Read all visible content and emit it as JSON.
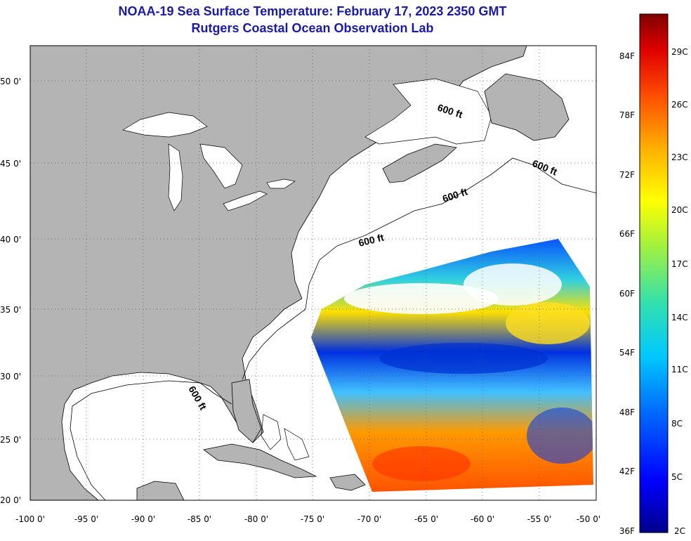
{
  "title": {
    "line1": "NOAA-19 Sea Surface Temperature:  February 17, 2023 2350 GMT",
    "line2": "Rutgers Coastal Ocean Observation Lab"
  },
  "colors": {
    "land": "#b4b4b4",
    "water": "#ffffff",
    "title_text": "#1a1aa8",
    "coastline": "#000000"
  },
  "map": {
    "lon_range": [
      -100,
      -50
    ],
    "lat_range": [
      20,
      52.5
    ],
    "lon_ticks": [
      "-100 0'",
      "-95 0'",
      "-90 0'",
      "-85 0'",
      "-80 0'",
      "-75 0'",
      "-70 0'",
      "-65 0'",
      "-60 0'",
      "-55 0'",
      "-50 0'"
    ],
    "lat_ticks": [
      "50 0'",
      "45 0'",
      "40 0'",
      "35 0'",
      "30 0'",
      "25 0'",
      "20 0'"
    ],
    "grid": "dotted",
    "contour_labels": [
      "600 ft",
      "600 ft",
      "600 ft",
      "600 ft",
      "600 ft"
    ]
  },
  "colorbar": {
    "fahrenheit_labels": [
      "84F",
      "78F",
      "72F",
      "66F",
      "60F",
      "54F",
      "48F",
      "42F",
      "36F"
    ],
    "celsius_labels": [
      "29C",
      "26C",
      "23C",
      "20C",
      "17C",
      "14C",
      "11C",
      "8C",
      "5C",
      "2C"
    ],
    "range_c": [
      2,
      31
    ]
  }
}
